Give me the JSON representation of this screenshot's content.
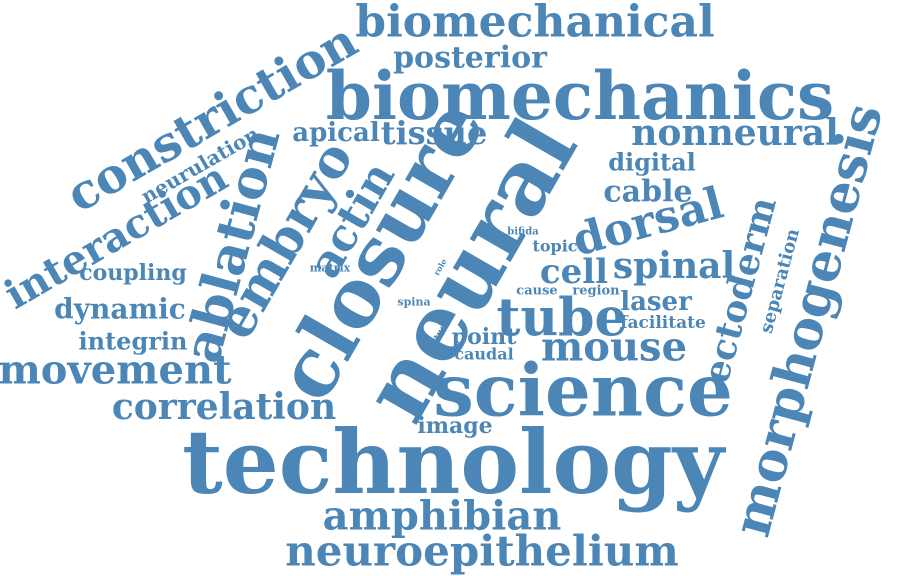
{
  "colors": {
    "word": "#4b86b6",
    "background": "#ffffff"
  },
  "words": {
    "biomechanical": "biomechanical",
    "posterior": "posterior",
    "biomechanics": "biomechanics",
    "constriction": "constriction",
    "neurulation": "neurulation",
    "apical": "apical",
    "tissue": "tissue",
    "nonneural": "nonneural",
    "morphogenesis": "morphogenesis",
    "digital": "digital",
    "cable": "cable",
    "dorsal": "dorsal",
    "interaction": "interaction",
    "ablation": "ablation",
    "embryo": "embryo",
    "actin": "actin",
    "closure": "closure",
    "neural": "neural",
    "ectoderm": "ectoderm",
    "separation": "separation",
    "bifida": "bifida",
    "topic": "topic",
    "cell": "cell",
    "spinal": "spinal",
    "coupling": "coupling",
    "matrix": "matrix",
    "role": "role",
    "cause": "cause",
    "region": "region",
    "laser": "laser",
    "dynamic": "dynamic",
    "spina": "spina",
    "tube": "tube",
    "facilitate": "facilitate",
    "integrin": "integrin",
    "study": "study",
    "point": "point",
    "caudal": "caudal",
    "mouse": "mouse",
    "movement": "movement",
    "science": "science",
    "correlation": "correlation",
    "image": "image",
    "technology": "technology",
    "amphibian": "amphibian",
    "neuroepithelium": "neuroepithelium"
  }
}
